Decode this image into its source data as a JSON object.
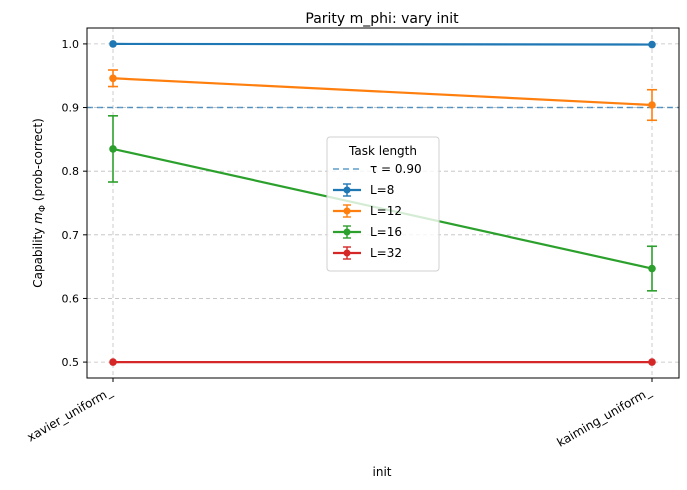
{
  "chart_data": {
    "type": "line",
    "title": "Parity m_phi: vary init",
    "xlabel": "init",
    "ylabel_prefix": "Capability ",
    "ylabel_symbol": "m",
    "ylabel_sub": "Φ",
    "ylabel_suffix": " (prob-correct)",
    "categories": [
      "xavier_uniform_",
      "kaiming_uniform_"
    ],
    "ylim": [
      0.475,
      1.025
    ],
    "yticks": [
      "0.5",
      "0.6",
      "0.7",
      "0.8",
      "0.9",
      "1.0"
    ],
    "grid": true,
    "legend_title": "Task length",
    "legend_placement": "center",
    "threshold": {
      "label": "τ = 0.90",
      "value": 0.9,
      "color": "#1f77b4"
    },
    "series": [
      {
        "name": "L=8",
        "color": "#1f77b4",
        "values": [
          1.0,
          0.999
        ],
        "errors": [
          0.0,
          0.0
        ]
      },
      {
        "name": "L=12",
        "color": "#ff7f0e",
        "values": [
          0.946,
          0.904
        ],
        "errors": [
          0.013,
          0.024
        ]
      },
      {
        "name": "L=16",
        "color": "#2ca02c",
        "values": [
          0.835,
          0.647
        ],
        "errors": [
          0.052,
          0.035
        ]
      },
      {
        "name": "L=32",
        "color": "#d62728",
        "values": [
          0.5,
          0.5
        ],
        "errors": [
          0.0,
          0.0
        ]
      }
    ]
  }
}
